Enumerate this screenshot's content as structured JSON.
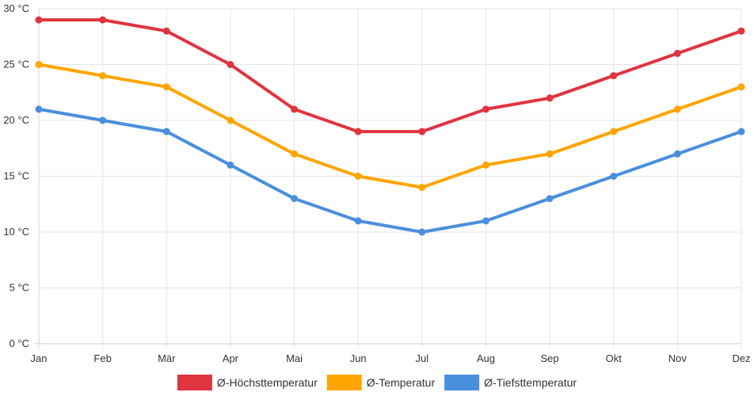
{
  "chart_data": {
    "type": "line",
    "title": "",
    "xlabel": "",
    "ylabel": "",
    "categories": [
      "Jan",
      "Feb",
      "Mär",
      "Apr",
      "Mai",
      "Jun",
      "Jul",
      "Aug",
      "Sep",
      "Okt",
      "Nov",
      "Dez"
    ],
    "y_ticks": [
      0,
      5,
      10,
      15,
      20,
      25,
      30
    ],
    "y_tick_labels": [
      "0 °C",
      "5 °C",
      "10 °C",
      "15 °C",
      "20 °C",
      "25 °C",
      "30 °C"
    ],
    "ylim": [
      0,
      30
    ],
    "grid": true,
    "legend_position": "bottom",
    "series": [
      {
        "name": "Ø-Höchsttemperatur",
        "color": "#e0343f",
        "values": [
          29,
          29,
          28,
          25,
          21,
          19,
          19,
          21,
          22,
          24,
          26,
          28
        ]
      },
      {
        "name": "Ø-Temperatur",
        "color": "#ffa500",
        "values": [
          25,
          24,
          23,
          20,
          17,
          15,
          14,
          16,
          17,
          19,
          21,
          23
        ]
      },
      {
        "name": "Ø-Tiefsttemperatur",
        "color": "#4a8fde",
        "values": [
          21,
          20,
          19,
          16,
          13,
          11,
          10,
          11,
          13,
          15,
          17,
          19
        ]
      }
    ]
  }
}
